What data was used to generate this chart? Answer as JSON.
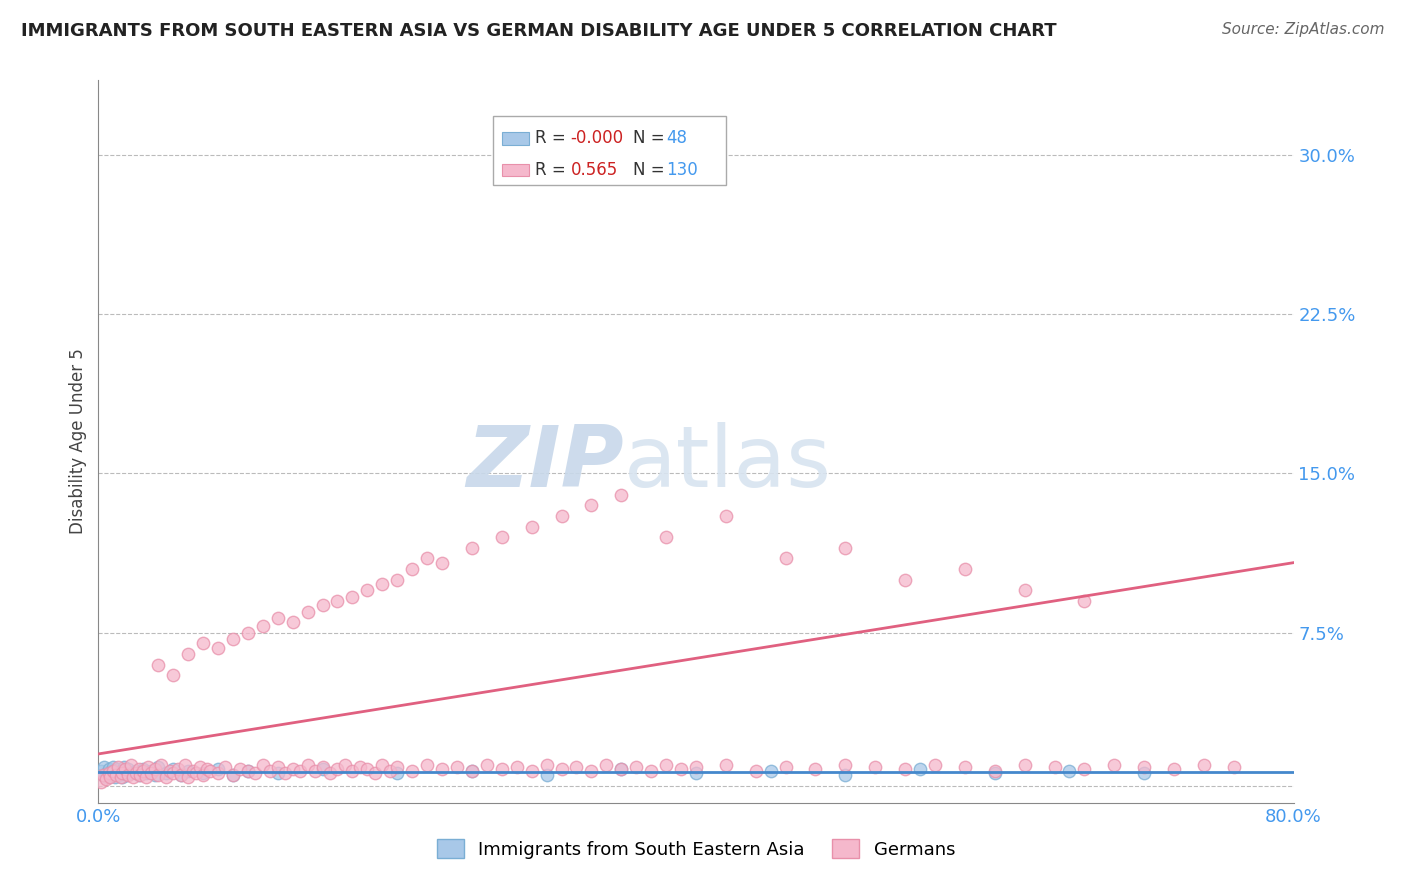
{
  "title": "IMMIGRANTS FROM SOUTH EASTERN ASIA VS GERMAN DISABILITY AGE UNDER 5 CORRELATION CHART",
  "source": "Source: ZipAtlas.com",
  "ylabel": "Disability Age Under 5",
  "xlim": [
    0.0,
    0.8
  ],
  "ylim": [
    -0.005,
    0.335
  ],
  "yticks": [
    0.0,
    0.075,
    0.15,
    0.225,
    0.3
  ],
  "ytick_labels": [
    "",
    "7.5%",
    "15.0%",
    "22.5%",
    "30.0%"
  ],
  "xticks": [
    0.0,
    0.2,
    0.4,
    0.6,
    0.8
  ],
  "xtick_labels": [
    "0.0%",
    "",
    "",
    "",
    "80.0%"
  ],
  "series1_color": "#a8c8e8",
  "series1_edge_color": "#7aaed4",
  "series1_line_color": "#4488cc",
  "series2_color": "#f5b8cc",
  "series2_edge_color": "#e890aa",
  "series2_line_color": "#e06080",
  "watermark": "ZIPatlas",
  "watermark_color": "#c8d8ea",
  "blue_x": [
    0.002,
    0.003,
    0.004,
    0.005,
    0.006,
    0.007,
    0.008,
    0.009,
    0.01,
    0.011,
    0.012,
    0.013,
    0.014,
    0.015,
    0.016,
    0.017,
    0.018,
    0.019,
    0.02,
    0.022,
    0.025,
    0.027,
    0.03,
    0.032,
    0.035,
    0.038,
    0.04,
    0.045,
    0.05,
    0.055,
    0.06,
    0.07,
    0.08,
    0.09,
    0.1,
    0.12,
    0.15,
    0.2,
    0.25,
    0.3,
    0.35,
    0.4,
    0.45,
    0.5,
    0.55,
    0.6,
    0.65,
    0.7
  ],
  "blue_y": [
    0.01,
    0.008,
    0.012,
    0.007,
    0.009,
    0.011,
    0.008,
    0.01,
    0.012,
    0.007,
    0.009,
    0.011,
    0.008,
    0.01,
    0.007,
    0.012,
    0.009,
    0.008,
    0.011,
    0.009,
    0.01,
    0.008,
    0.011,
    0.009,
    0.01,
    0.008,
    0.012,
    0.009,
    0.011,
    0.008,
    0.01,
    0.009,
    0.011,
    0.008,
    0.01,
    0.009,
    0.011,
    0.009,
    0.01,
    0.008,
    0.011,
    0.009,
    0.01,
    0.008,
    0.011,
    0.009,
    0.01,
    0.009
  ],
  "pink_x": [
    0.002,
    0.003,
    0.005,
    0.007,
    0.008,
    0.01,
    0.012,
    0.013,
    0.015,
    0.016,
    0.018,
    0.02,
    0.022,
    0.023,
    0.025,
    0.027,
    0.028,
    0.03,
    0.032,
    0.033,
    0.035,
    0.038,
    0.04,
    0.042,
    0.045,
    0.048,
    0.05,
    0.053,
    0.055,
    0.058,
    0.06,
    0.063,
    0.065,
    0.068,
    0.07,
    0.073,
    0.075,
    0.08,
    0.085,
    0.09,
    0.095,
    0.1,
    0.105,
    0.11,
    0.115,
    0.12,
    0.125,
    0.13,
    0.135,
    0.14,
    0.145,
    0.15,
    0.155,
    0.16,
    0.165,
    0.17,
    0.175,
    0.18,
    0.185,
    0.19,
    0.195,
    0.2,
    0.21,
    0.22,
    0.23,
    0.24,
    0.25,
    0.26,
    0.27,
    0.28,
    0.29,
    0.3,
    0.31,
    0.32,
    0.33,
    0.34,
    0.35,
    0.36,
    0.37,
    0.38,
    0.39,
    0.4,
    0.42,
    0.44,
    0.46,
    0.48,
    0.5,
    0.52,
    0.54,
    0.56,
    0.58,
    0.6,
    0.62,
    0.64,
    0.66,
    0.68,
    0.7,
    0.72,
    0.74,
    0.76,
    0.04,
    0.05,
    0.06,
    0.07,
    0.08,
    0.09,
    0.1,
    0.11,
    0.12,
    0.13,
    0.14,
    0.15,
    0.16,
    0.17,
    0.18,
    0.19,
    0.2,
    0.21,
    0.22,
    0.23,
    0.25,
    0.27,
    0.29,
    0.31,
    0.33,
    0.35,
    0.38,
    0.42,
    0.46,
    0.5,
    0.54,
    0.58,
    0.62,
    0.66
  ],
  "pink_y": [
    0.005,
    0.008,
    0.006,
    0.009,
    0.007,
    0.01,
    0.008,
    0.012,
    0.007,
    0.009,
    0.011,
    0.008,
    0.013,
    0.007,
    0.009,
    0.011,
    0.008,
    0.01,
    0.007,
    0.012,
    0.009,
    0.011,
    0.008,
    0.013,
    0.007,
    0.01,
    0.009,
    0.011,
    0.008,
    0.013,
    0.007,
    0.01,
    0.009,
    0.012,
    0.008,
    0.011,
    0.01,
    0.009,
    0.012,
    0.008,
    0.011,
    0.01,
    0.009,
    0.013,
    0.01,
    0.012,
    0.009,
    0.011,
    0.01,
    0.013,
    0.01,
    0.012,
    0.009,
    0.011,
    0.013,
    0.01,
    0.012,
    0.011,
    0.009,
    0.013,
    0.01,
    0.012,
    0.01,
    0.013,
    0.011,
    0.012,
    0.01,
    0.013,
    0.011,
    0.012,
    0.01,
    0.013,
    0.011,
    0.012,
    0.01,
    0.013,
    0.011,
    0.012,
    0.01,
    0.013,
    0.011,
    0.012,
    0.013,
    0.01,
    0.012,
    0.011,
    0.013,
    0.012,
    0.011,
    0.013,
    0.012,
    0.01,
    0.013,
    0.012,
    0.011,
    0.013,
    0.012,
    0.011,
    0.013,
    0.012,
    0.06,
    0.055,
    0.065,
    0.07,
    0.068,
    0.072,
    0.075,
    0.078,
    0.082,
    0.08,
    0.085,
    0.088,
    0.09,
    0.092,
    0.095,
    0.098,
    0.1,
    0.105,
    0.11,
    0.108,
    0.115,
    0.12,
    0.125,
    0.13,
    0.135,
    0.14,
    0.12,
    0.13,
    0.11,
    0.115,
    0.1,
    0.105,
    0.095,
    0.09
  ],
  "blue_trend_x": [
    0.0,
    0.8
  ],
  "blue_trend_y": [
    0.0095,
    0.0095
  ],
  "pink_trend_x": [
    0.0,
    0.8
  ],
  "pink_trend_y": [
    0.018,
    0.108
  ]
}
